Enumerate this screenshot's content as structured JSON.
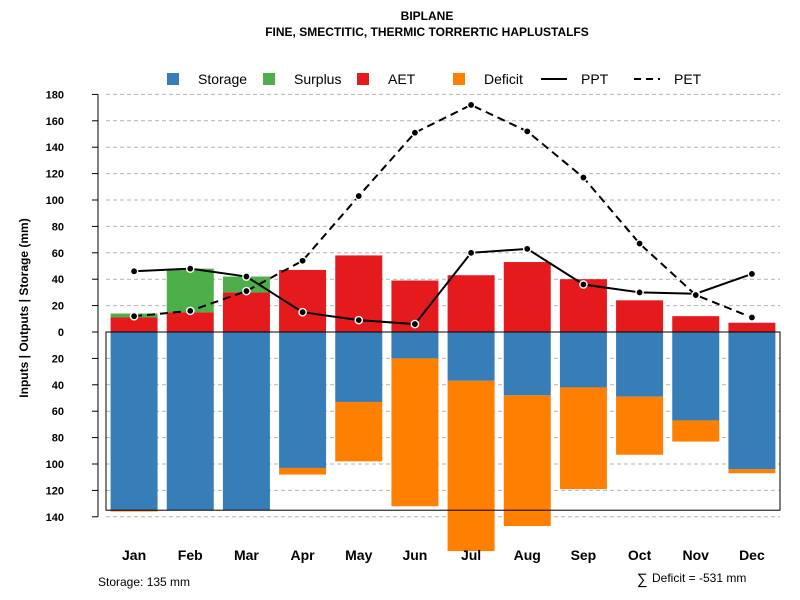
{
  "chart_data": {
    "type": "bar",
    "title": "BIPLANE",
    "subtitle": "FINE, SMECTITIC, THERMIC TORRERTIC HAPLUSTALFS",
    "ylabel": "Inputs | Outputs | Storage    (mm)",
    "categories": [
      "Jan",
      "Feb",
      "Mar",
      "Apr",
      "May",
      "Jun",
      "Jul",
      "Aug",
      "Sep",
      "Oct",
      "Nov",
      "Dec"
    ],
    "ylim": [
      -140,
      180
    ],
    "yticks": [
      180,
      160,
      140,
      120,
      100,
      80,
      60,
      40,
      20,
      0,
      -20,
      -40,
      -60,
      -80,
      -100,
      -120,
      -140
    ],
    "ytick_labels": [
      "180",
      "160",
      "140",
      "120",
      "100",
      "80",
      "60",
      "40",
      "20",
      "0",
      "20",
      "40",
      "60",
      "80",
      "100",
      "120",
      "140"
    ],
    "series": [
      {
        "name": "Storage",
        "color": "#377eb8",
        "kind": "below",
        "values": [
          135,
          135,
          135,
          103,
          53,
          20,
          37,
          48,
          42,
          49,
          67,
          104
        ]
      },
      {
        "name": "Surplus",
        "color": "#4daf4a",
        "kind": "above",
        "values": [
          3,
          33,
          12,
          0,
          0,
          0,
          0,
          0,
          0,
          0,
          0,
          0
        ]
      },
      {
        "name": "AET",
        "color": "#e41a1c",
        "kind": "above",
        "values": [
          11,
          15,
          30,
          47,
          58,
          39,
          43,
          53,
          40,
          24,
          12,
          7
        ]
      },
      {
        "name": "Deficit",
        "color": "#ff7f00",
        "kind": "below",
        "values": [
          1,
          0,
          0,
          5,
          45,
          112,
          129,
          99,
          77,
          44,
          16,
          3
        ]
      },
      {
        "name": "PPT",
        "color": "#000000",
        "kind": "line",
        "dash": "solid",
        "values": [
          46,
          48,
          42,
          15,
          9,
          6,
          60,
          63,
          36,
          30,
          29,
          44
        ]
      },
      {
        "name": "PET",
        "color": "#000000",
        "kind": "line",
        "dash": "dashed",
        "values": [
          12,
          16,
          31,
          54,
          103,
          151,
          172,
          152,
          117,
          67,
          28,
          11
        ]
      }
    ],
    "storage_capacity": 135,
    "grid": true,
    "legend_position": "top"
  },
  "notes": {
    "storage": "Storage: 135 mm",
    "sum_symbol": "∑",
    "deficit": "Deficit = -531 mm"
  }
}
